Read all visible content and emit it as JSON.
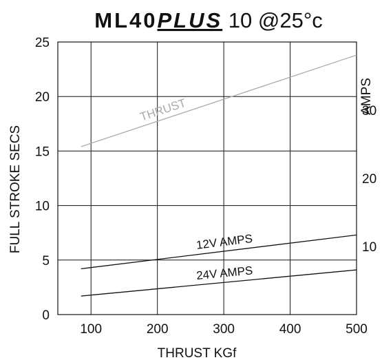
{
  "chart_data": {
    "type": "line",
    "title": {
      "part1": "ML40",
      "part2": "PLUS",
      "part3": " 10 @25°c"
    },
    "xlabel": "THRUST KGf",
    "ylabel": "FULL STROKE SECS",
    "y2label": "AMPS",
    "xlim": [
      50,
      500
    ],
    "ylim": [
      0,
      25
    ],
    "y2lim": [
      0,
      40
    ],
    "x_ticks": [
      "100",
      "200",
      "300",
      "400",
      "500"
    ],
    "x_tick_values": [
      100,
      200,
      300,
      400,
      500
    ],
    "y_ticks": [
      "0",
      "5",
      "10",
      "15",
      "20",
      "25"
    ],
    "y_tick_values": [
      0,
      5,
      10,
      15,
      20,
      25
    ],
    "y2_ticks": [
      "10",
      "20",
      "30"
    ],
    "y2_tick_values": [
      10,
      20,
      30
    ],
    "grid": true,
    "series": [
      {
        "name": "THRUST",
        "axis": "left",
        "color": "#aaaaaa",
        "x": [
          85,
          500
        ],
        "y": [
          15.4,
          23.8
        ]
      },
      {
        "name": "12V AMPS",
        "axis": "left",
        "color": "#111111",
        "x": [
          85,
          500
        ],
        "y": [
          4.2,
          7.3
        ]
      },
      {
        "name": "24V AMPS",
        "axis": "left",
        "color": "#111111",
        "x": [
          85,
          500
        ],
        "y": [
          1.7,
          4.1
        ]
      }
    ]
  }
}
